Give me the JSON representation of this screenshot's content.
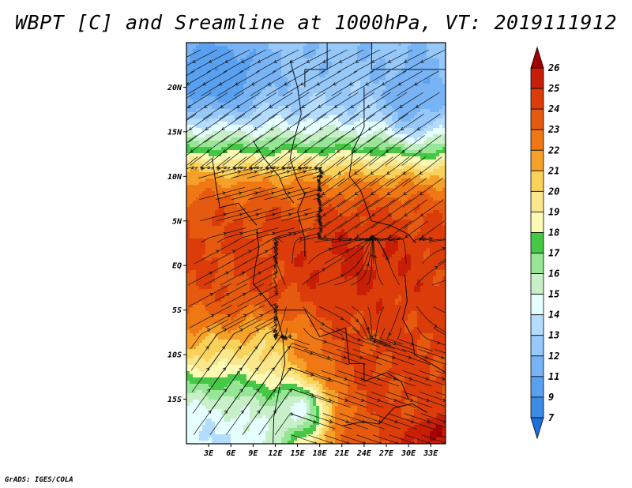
{
  "chart_data": {
    "type": "heatmap",
    "title": "WBPT [C] and Sreamline at 1000hPa, VT: 2019111912",
    "variable": "WBPT",
    "units": "C",
    "level": "1000hPa",
    "valid_time": "2019111912",
    "overlay": "streamlines",
    "x_axis": {
      "range": [
        0,
        35
      ],
      "ticks": [
        3,
        6,
        9,
        12,
        15,
        18,
        21,
        24,
        27,
        30,
        33
      ],
      "tick_labels": [
        "3E",
        "6E",
        "9E",
        "12E",
        "15E",
        "18E",
        "21E",
        "24E",
        "27E",
        "30E",
        "33E"
      ]
    },
    "y_axis": {
      "range": [
        -20,
        25
      ],
      "ticks": [
        20,
        15,
        10,
        5,
        0,
        -5,
        -10,
        -15
      ],
      "tick_labels": [
        "20N",
        "15N",
        "10N",
        "5N",
        "EQ",
        "5S",
        "10S",
        "15S"
      ]
    },
    "colorbar": {
      "levels": [
        7,
        9,
        11,
        12,
        13,
        14,
        15,
        16,
        17,
        18,
        19,
        20,
        21,
        22,
        23,
        24,
        25,
        26
      ],
      "labels": [
        "7",
        "9",
        "11",
        "12",
        "13",
        "14",
        "15",
        "16",
        "17",
        "18",
        "19",
        "20",
        "21",
        "22",
        "23",
        "24",
        "25",
        "26"
      ],
      "colors": [
        "#1e6fdc",
        "#3c8ce6",
        "#5aa0f0",
        "#78b4f5",
        "#96c8fa",
        "#b4dcff",
        "#e6ffff",
        "#c8f0c8",
        "#96e696",
        "#46c846",
        "#fafab4",
        "#fae68c",
        "#fad25a",
        "#f5a028",
        "#f07814",
        "#e65a0f",
        "#dc3c0a",
        "#c81e05",
        "#a50000"
      ]
    }
  },
  "footer": "GrADS: IGES/COLA"
}
